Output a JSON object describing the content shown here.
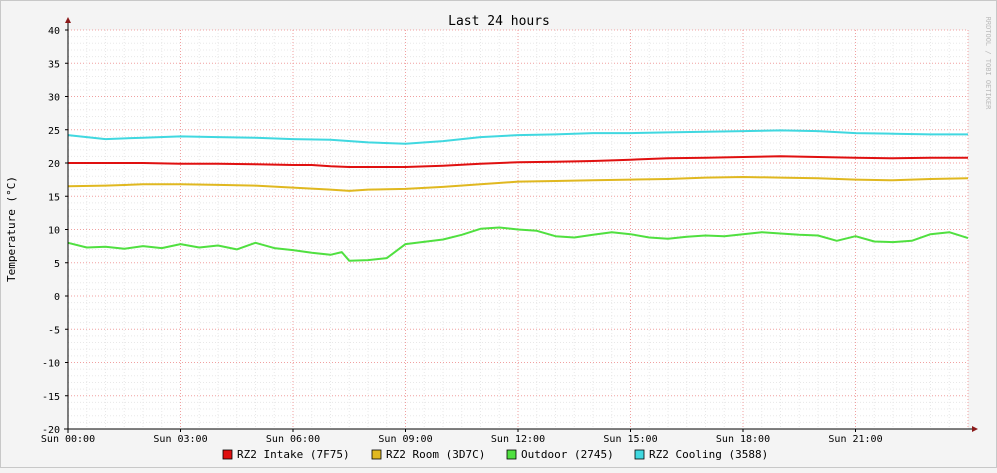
{
  "chart_data": {
    "type": "line",
    "title": "Last 24 hours",
    "ylabel": "Temperature (°C)",
    "watermark": "RRDTOOL / TOBI OETIKER",
    "ylim": [
      -20,
      40
    ],
    "yticks": [
      40,
      35,
      30,
      25,
      20,
      15,
      10,
      5,
      0,
      -5,
      -10,
      -15,
      -20
    ],
    "xlim_hours": [
      0,
      24
    ],
    "xticks": [
      {
        "hour": 0,
        "label": "Sun 00:00"
      },
      {
        "hour": 3,
        "label": "Sun 03:00"
      },
      {
        "hour": 6,
        "label": "Sun 06:00"
      },
      {
        "hour": 9,
        "label": "Sun 09:00"
      },
      {
        "hour": 12,
        "label": "Sun 12:00"
      },
      {
        "hour": 15,
        "label": "Sun 15:00"
      },
      {
        "hour": 18,
        "label": "Sun 18:00"
      },
      {
        "hour": 21,
        "label": "Sun 21:00"
      }
    ],
    "grid": true,
    "legend_position": "bottom",
    "series": [
      {
        "name": "RZ2 Intake (7F75)",
        "color": "#e01010",
        "points": [
          [
            0,
            20.0
          ],
          [
            1,
            20.0
          ],
          [
            2,
            20.0
          ],
          [
            3,
            19.9
          ],
          [
            4,
            19.9
          ],
          [
            5,
            19.8
          ],
          [
            6,
            19.7
          ],
          [
            6.5,
            19.7
          ],
          [
            7,
            19.5
          ],
          [
            7.5,
            19.4
          ],
          [
            8,
            19.4
          ],
          [
            9,
            19.4
          ],
          [
            10,
            19.6
          ],
          [
            11,
            19.9
          ],
          [
            12,
            20.1
          ],
          [
            13,
            20.2
          ],
          [
            14,
            20.3
          ],
          [
            15,
            20.5
          ],
          [
            16,
            20.7
          ],
          [
            17,
            20.8
          ],
          [
            18,
            20.9
          ],
          [
            19,
            21.0
          ],
          [
            20,
            20.9
          ],
          [
            21,
            20.8
          ],
          [
            22,
            20.7
          ],
          [
            23,
            20.8
          ],
          [
            24,
            20.8
          ]
        ]
      },
      {
        "name": "RZ2 Room (3D7C)",
        "color": "#e0b820",
        "points": [
          [
            0,
            16.5
          ],
          [
            1,
            16.6
          ],
          [
            2,
            16.8
          ],
          [
            3,
            16.8
          ],
          [
            4,
            16.7
          ],
          [
            5,
            16.6
          ],
          [
            6,
            16.3
          ],
          [
            7,
            16.0
          ],
          [
            7.5,
            15.8
          ],
          [
            8,
            16.0
          ],
          [
            9,
            16.1
          ],
          [
            10,
            16.4
          ],
          [
            11,
            16.8
          ],
          [
            12,
            17.2
          ],
          [
            13,
            17.3
          ],
          [
            14,
            17.4
          ],
          [
            15,
            17.5
          ],
          [
            16,
            17.6
          ],
          [
            17,
            17.8
          ],
          [
            18,
            17.9
          ],
          [
            19,
            17.8
          ],
          [
            20,
            17.7
          ],
          [
            21,
            17.5
          ],
          [
            22,
            17.4
          ],
          [
            23,
            17.6
          ],
          [
            24,
            17.7
          ]
        ]
      },
      {
        "name": "Outdoor (2745)",
        "color": "#50e040",
        "points": [
          [
            0,
            8.0
          ],
          [
            0.5,
            7.3
          ],
          [
            1,
            7.4
          ],
          [
            1.5,
            7.1
          ],
          [
            2,
            7.5
          ],
          [
            2.5,
            7.2
          ],
          [
            3,
            7.8
          ],
          [
            3.5,
            7.3
          ],
          [
            4,
            7.6
          ],
          [
            4.5,
            7.0
          ],
          [
            5,
            8.0
          ],
          [
            5.5,
            7.2
          ],
          [
            6,
            6.9
          ],
          [
            6.5,
            6.5
          ],
          [
            7,
            6.2
          ],
          [
            7.3,
            6.6
          ],
          [
            7.5,
            5.3
          ],
          [
            8,
            5.4
          ],
          [
            8.5,
            5.7
          ],
          [
            9,
            7.8
          ],
          [
            10,
            8.5
          ],
          [
            10.5,
            9.2
          ],
          [
            11,
            10.1
          ],
          [
            11.5,
            10.3
          ],
          [
            12,
            10.0
          ],
          [
            12.5,
            9.8
          ],
          [
            13,
            9.0
          ],
          [
            13.5,
            8.8
          ],
          [
            14,
            9.2
          ],
          [
            14.5,
            9.6
          ],
          [
            15,
            9.3
          ],
          [
            15.5,
            8.8
          ],
          [
            16,
            8.6
          ],
          [
            16.5,
            8.9
          ],
          [
            17,
            9.1
          ],
          [
            17.5,
            9.0
          ],
          [
            18,
            9.3
          ],
          [
            18.5,
            9.6
          ],
          [
            19,
            9.4
          ],
          [
            19.5,
            9.2
          ],
          [
            20,
            9.1
          ],
          [
            20.5,
            8.3
          ],
          [
            21,
            9.0
          ],
          [
            21.5,
            8.2
          ],
          [
            22,
            8.1
          ],
          [
            22.5,
            8.3
          ],
          [
            23,
            9.3
          ],
          [
            23.5,
            9.6
          ],
          [
            24,
            8.7
          ]
        ]
      },
      {
        "name": "RZ2 Cooling (3588)",
        "color": "#40d8e0",
        "points": [
          [
            0,
            24.2
          ],
          [
            1,
            23.6
          ],
          [
            2,
            23.8
          ],
          [
            3,
            24.0
          ],
          [
            4,
            23.9
          ],
          [
            5,
            23.8
          ],
          [
            6,
            23.6
          ],
          [
            7,
            23.5
          ],
          [
            8,
            23.1
          ],
          [
            9,
            22.9
          ],
          [
            10,
            23.3
          ],
          [
            11,
            23.9
          ],
          [
            12,
            24.2
          ],
          [
            13,
            24.3
          ],
          [
            14,
            24.5
          ],
          [
            15,
            24.5
          ],
          [
            16,
            24.6
          ],
          [
            17,
            24.7
          ],
          [
            18,
            24.8
          ],
          [
            19,
            24.9
          ],
          [
            20,
            24.8
          ],
          [
            21,
            24.5
          ],
          [
            22,
            24.4
          ],
          [
            23,
            24.3
          ],
          [
            24,
            24.3
          ]
        ]
      }
    ]
  }
}
